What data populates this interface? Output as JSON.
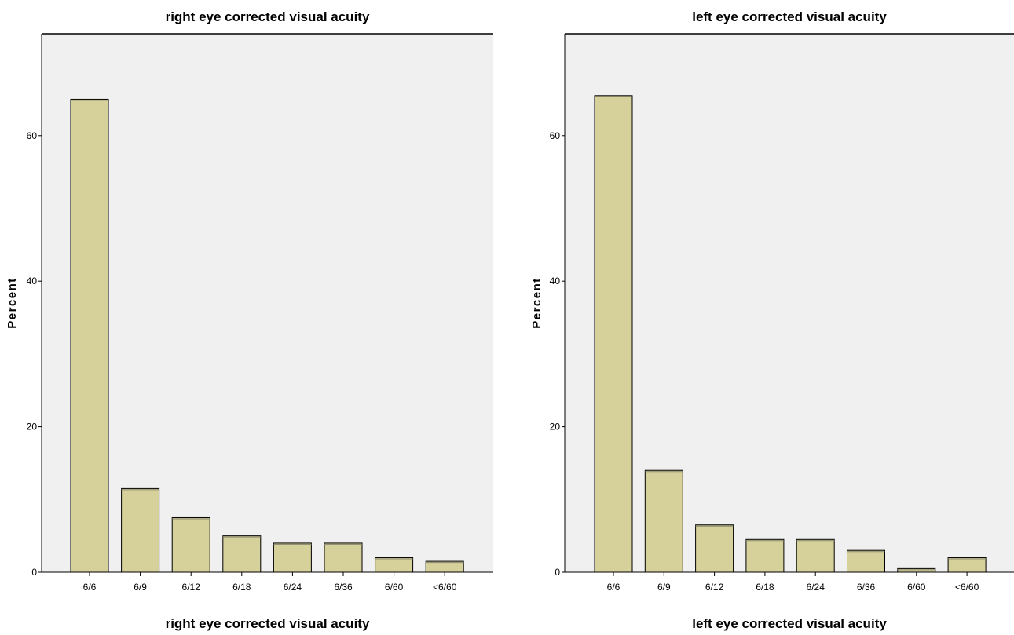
{
  "chart_data": [
    {
      "type": "bar",
      "title": "right eye corrected visual acuity",
      "xlabel": "right eye corrected visual acuity",
      "ylabel": "Percent",
      "ylim": [
        0,
        74
      ],
      "yticks": [
        0,
        20,
        40,
        60
      ],
      "categories": [
        "6/6",
        "6/9",
        "6/12",
        "6/18",
        "6/24",
        "6/36",
        "6/60",
        "<6/60"
      ],
      "values": [
        65.0,
        11.5,
        7.5,
        5.0,
        4.0,
        4.0,
        2.0,
        1.5
      ],
      "bar_color": "#d6d09a",
      "background_color": "#f0f0f0",
      "grid": false
    },
    {
      "type": "bar",
      "title": "left eye  corrected visual acuity",
      "xlabel": "left eye  corrected visual acuity",
      "ylabel": "Percent",
      "ylim": [
        0,
        74
      ],
      "yticks": [
        0,
        20,
        40,
        60
      ],
      "categories": [
        "6/6",
        "6/9",
        "6/12",
        "6/18",
        "6/24",
        "6/36",
        "6/60",
        "<6/60"
      ],
      "values": [
        65.5,
        14.0,
        6.5,
        4.5,
        4.5,
        3.0,
        0.5,
        2.0
      ],
      "bar_color": "#d6d09a",
      "background_color": "#f0f0f0",
      "grid": false
    }
  ]
}
